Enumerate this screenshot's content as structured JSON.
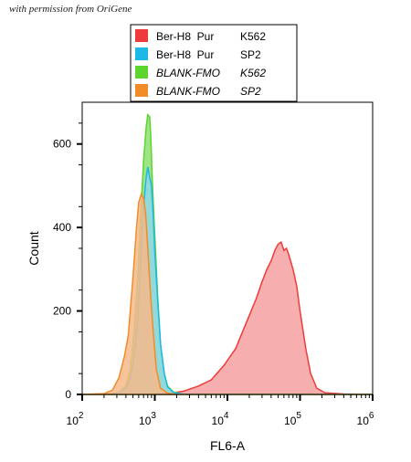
{
  "credit": "with permission from OriGene",
  "chart_data": {
    "type": "area",
    "xlabel": "FL6-A",
    "ylabel": "Count",
    "x_scale": "log",
    "xlim": [
      100,
      1000000
    ],
    "ylim": [
      0,
      700
    ],
    "x_ticks": [
      {
        "base": "10",
        "exp": "2",
        "value": 100
      },
      {
        "base": "10",
        "exp": "3",
        "value": 1000
      },
      {
        "base": "10",
        "exp": "4",
        "value": 10000
      },
      {
        "base": "10",
        "exp": "5",
        "value": 100000
      },
      {
        "base": "10",
        "exp": "6",
        "value": 1000000
      }
    ],
    "y_ticks": [
      0,
      200,
      400,
      600
    ],
    "legend_position": "top-center",
    "series": [
      {
        "legend": [
          "Ber-H8  Pur",
          "K562"
        ],
        "italic": false,
        "color": "#ee3b3b",
        "fill": "#f4a0a0",
        "points": [
          [
            100,
            0
          ],
          [
            1500,
            2
          ],
          [
            2500,
            8
          ],
          [
            4000,
            20
          ],
          [
            6000,
            35
          ],
          [
            9000,
            70
          ],
          [
            13000,
            110
          ],
          [
            18000,
            170
          ],
          [
            25000,
            230
          ],
          [
            30000,
            270
          ],
          [
            35000,
            300
          ],
          [
            40000,
            320
          ],
          [
            45000,
            345
          ],
          [
            50000,
            360
          ],
          [
            55000,
            365
          ],
          [
            60000,
            345
          ],
          [
            65000,
            350
          ],
          [
            70000,
            335
          ],
          [
            80000,
            300
          ],
          [
            90000,
            260
          ],
          [
            100000,
            200
          ],
          [
            120000,
            110
          ],
          [
            140000,
            50
          ],
          [
            170000,
            15
          ],
          [
            220000,
            4
          ],
          [
            400000,
            1
          ],
          [
            1000000,
            0
          ]
        ]
      },
      {
        "legend": [
          "BLANK-FMO",
          "K562"
        ],
        "italic": true,
        "color": "#5cd62e",
        "fill": "#8ee070",
        "points": [
          [
            100,
            0
          ],
          [
            250,
            1
          ],
          [
            320,
            5
          ],
          [
            400,
            20
          ],
          [
            460,
            60
          ],
          [
            520,
            150
          ],
          [
            580,
            280
          ],
          [
            640,
            430
          ],
          [
            700,
            560
          ],
          [
            760,
            640
          ],
          [
            800,
            670
          ],
          [
            850,
            665
          ],
          [
            880,
            620
          ],
          [
            930,
            500
          ],
          [
            1000,
            380
          ],
          [
            1100,
            230
          ],
          [
            1200,
            120
          ],
          [
            1350,
            50
          ],
          [
            1500,
            20
          ],
          [
            1800,
            6
          ],
          [
            2500,
            0
          ],
          [
            1000000,
            0
          ]
        ]
      },
      {
        "legend": [
          "Ber-H8  Pur",
          "SP2"
        ],
        "italic": false,
        "color": "#1cb8e8",
        "fill": "#8fd8e8",
        "points": [
          [
            100,
            0
          ],
          [
            250,
            1
          ],
          [
            320,
            5
          ],
          [
            400,
            15
          ],
          [
            460,
            40
          ],
          [
            520,
            90
          ],
          [
            580,
            180
          ],
          [
            640,
            320
          ],
          [
            700,
            450
          ],
          [
            760,
            520
          ],
          [
            800,
            545
          ],
          [
            850,
            520
          ],
          [
            900,
            500
          ],
          [
            950,
            430
          ],
          [
            1000,
            340
          ],
          [
            1100,
            220
          ],
          [
            1200,
            120
          ],
          [
            1350,
            50
          ],
          [
            1500,
            18
          ],
          [
            1800,
            5
          ],
          [
            2500,
            0
          ],
          [
            1000000,
            0
          ]
        ]
      },
      {
        "legend": [
          "BLANK-FMO",
          "SP2"
        ],
        "italic": true,
        "color": "#f28c28",
        "fill": "#f6b98a",
        "points": [
          [
            100,
            0
          ],
          [
            200,
            2
          ],
          [
            260,
            10
          ],
          [
            320,
            40
          ],
          [
            380,
            90
          ],
          [
            430,
            140
          ],
          [
            500,
            280
          ],
          [
            560,
            400
          ],
          [
            600,
            460
          ],
          [
            650,
            480
          ],
          [
            700,
            470
          ],
          [
            750,
            430
          ],
          [
            800,
            350
          ],
          [
            880,
            230
          ],
          [
            950,
            150
          ],
          [
            1050,
            60
          ],
          [
            1200,
            15
          ],
          [
            1500,
            3
          ],
          [
            2000,
            0
          ],
          [
            1000000,
            0
          ]
        ]
      }
    ]
  }
}
